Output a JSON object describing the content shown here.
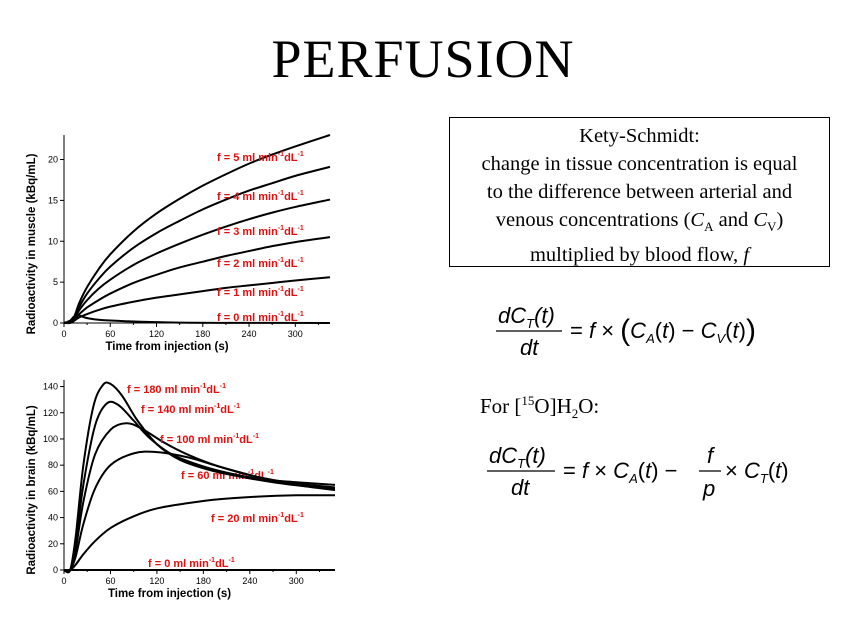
{
  "title": "PERFUSION",
  "kety_box": {
    "lines": [
      "Kety-Schmidt:",
      "change in tissue concentration is equal",
      "to the difference between arterial and"
    ],
    "line4_pre": "venous concentrations (",
    "ca": "C",
    "ca_sub": "A",
    "and_word": " and ",
    "cv": "C",
    "cv_sub": "V",
    "line4_post": ")",
    "line5_pre": "multiplied by blood flow, ",
    "line5_f": "f"
  },
  "for_label": {
    "pre": "For [",
    "sup": "15",
    "mid": "O]H",
    "sub": "2",
    "post": "O:"
  },
  "equation1": {
    "numerator": "dC",
    "numerator_sub": "T",
    "numerator_arg": "(t)",
    "denominator": "dt",
    "rhs": "= f × (C_A(t) − C_V(t))"
  },
  "equation2": {
    "numerator": "dC",
    "numerator_sub": "T",
    "numerator_arg": "(t)",
    "denominator": "dt",
    "rhs": "= f × C_A(t) − f/p × C_T(t)",
    "frac_num": "f",
    "frac_den": "p"
  },
  "chart_data": [
    {
      "type": "line",
      "xlabel": "Time from injection (s)",
      "ylabel": "Radioactivity in muscle (kBq/mL)",
      "xlim": [
        0,
        345
      ],
      "ylim": [
        0,
        23
      ],
      "xticks": [
        0,
        60,
        120,
        180,
        240,
        300
      ],
      "yticks": [
        0,
        5,
        10,
        15,
        20
      ],
      "grid": false,
      "series": [
        {
          "name": "f = 0 ml min-1dL-1",
          "label_main": "f = 0 ml min",
          "label_sup1": "-1",
          "label_mid": "dL",
          "label_sup2": "-1",
          "x": [
            0,
            8,
            12,
            16,
            20,
            30,
            40,
            60,
            100,
            150,
            200,
            345
          ],
          "y": [
            0,
            0.3,
            0.7,
            1.0,
            0.9,
            0.6,
            0.45,
            0.3,
            0.15,
            0.05,
            0.02,
            0
          ]
        },
        {
          "name": "f = 1 ml min-1dL-1",
          "label_main": "f = 1 ml min",
          "label_sup1": "-1",
          "label_mid": "dL",
          "label_sup2": "-1",
          "x": [
            0,
            10,
            15,
            20,
            30,
            45,
            60,
            90,
            120,
            150,
            180,
            210,
            240,
            270,
            300,
            345
          ],
          "y": [
            0,
            0.1,
            0.4,
            0.7,
            1.1,
            1.6,
            2.0,
            2.6,
            3.1,
            3.5,
            3.9,
            4.3,
            4.6,
            4.9,
            5.2,
            5.6
          ]
        },
        {
          "name": "f = 2 ml min-1dL-1",
          "label_main": "f = 2 ml min",
          "label_sup1": "-1",
          "label_mid": "dL",
          "label_sup2": "-1",
          "x": [
            0,
            10,
            15,
            20,
            30,
            45,
            60,
            90,
            120,
            150,
            180,
            210,
            240,
            270,
            300,
            345
          ],
          "y": [
            0,
            0.1,
            0.6,
            1.1,
            1.9,
            2.8,
            3.6,
            4.9,
            5.9,
            6.8,
            7.5,
            8.2,
            8.8,
            9.4,
            9.9,
            10.5
          ]
        },
        {
          "name": "f = 3 ml min-1dL-1",
          "label_main": "f = 3 ml min",
          "label_sup1": "-1",
          "label_mid": "dL",
          "label_sup2": "-1",
          "x": [
            0,
            10,
            15,
            20,
            30,
            45,
            60,
            90,
            120,
            150,
            180,
            210,
            240,
            270,
            300,
            345
          ],
          "y": [
            0,
            0.1,
            0.8,
            1.6,
            2.8,
            4.2,
            5.3,
            7.1,
            8.5,
            9.7,
            10.8,
            11.8,
            12.7,
            13.5,
            14.2,
            15.1
          ]
        },
        {
          "name": "f = 4 ml min-1dL-1",
          "label_main": "f = 4 ml min",
          "label_sup1": "-1",
          "label_mid": "dL",
          "label_sup2": "-1",
          "x": [
            0,
            10,
            15,
            20,
            30,
            45,
            60,
            90,
            120,
            150,
            180,
            210,
            240,
            270,
            300,
            345
          ],
          "y": [
            0,
            0.1,
            1.0,
            2.0,
            3.6,
            5.4,
            6.9,
            9.2,
            11.0,
            12.5,
            13.9,
            15.1,
            16.2,
            17.1,
            18.0,
            19.1
          ]
        },
        {
          "name": "f = 5 ml min-1dL-1",
          "label_main": "f = 5 ml min",
          "label_sup1": "-1",
          "label_mid": "dL",
          "label_sup2": "-1",
          "x": [
            0,
            10,
            15,
            20,
            30,
            45,
            60,
            90,
            120,
            150,
            180,
            210,
            240,
            270,
            300,
            345
          ],
          "y": [
            0,
            0.1,
            1.2,
            2.5,
            4.4,
            6.6,
            8.4,
            11.2,
            13.4,
            15.2,
            16.8,
            18.2,
            19.5,
            20.6,
            21.6,
            23.0
          ]
        }
      ]
    },
    {
      "type": "line",
      "xlabel": "Time from injection (s)",
      "ylabel": "Radioactivity in brain (kBq/mL)",
      "xlim": [
        0,
        350
      ],
      "ylim": [
        0,
        145
      ],
      "xticks": [
        0,
        60,
        120,
        180,
        240,
        300
      ],
      "yticks": [
        0,
        20,
        40,
        60,
        80,
        100,
        120,
        140
      ],
      "grid": false,
      "series": [
        {
          "name": "f = 0 ml min-1dL-1",
          "label_main": "f = 0 ml min",
          "label_sup1": "-1",
          "label_mid": "dL",
          "label_sup2": "-1",
          "x": [
            0,
            350
          ],
          "y": [
            0,
            0
          ]
        },
        {
          "name": "f = 20 ml min-1dL-1",
          "label_main": "f = 20 ml min",
          "label_sup1": "-1",
          "label_mid": "dL",
          "label_sup2": "-1",
          "x": [
            0,
            8,
            15,
            25,
            40,
            60,
            90,
            120,
            160,
            200,
            250,
            300,
            350
          ],
          "y": [
            0,
            0,
            4,
            12,
            22,
            32,
            41,
            47,
            51,
            54,
            56,
            57,
            57
          ]
        },
        {
          "name": "f = 60 ml min-1dL-1",
          "label_main": "f = 60 ml min",
          "label_sup1": "-1",
          "label_mid": "dL",
          "label_sup2": "-1",
          "x": [
            0,
            8,
            15,
            25,
            40,
            60,
            90,
            120,
            160,
            200,
            250,
            300,
            350
          ],
          "y": [
            0,
            0,
            10,
            35,
            62,
            80,
            89,
            90,
            86,
            79,
            71,
            65,
            61
          ]
        },
        {
          "name": "f = 100 ml min-1dL-1",
          "label_main": "f = 100 ml min",
          "label_sup1": "-1",
          "label_mid": "dL",
          "label_sup2": "-1",
          "x": [
            0,
            8,
            15,
            25,
            40,
            60,
            80,
            100,
            130,
            160,
            200,
            250,
            300,
            350
          ],
          "y": [
            0,
            0,
            15,
            52,
            88,
            107,
            112,
            108,
            97,
            88,
            79,
            71,
            66,
            63
          ]
        },
        {
          "name": "f = 140 ml min-1dL-1",
          "label_main": "f = 140 ml min",
          "label_sup1": "-1",
          "label_mid": "dL",
          "label_sup2": "-1",
          "x": [
            0,
            8,
            15,
            25,
            40,
            55,
            70,
            90,
            110,
            140,
            180,
            220,
            260,
            300,
            350
          ],
          "y": [
            0,
            0,
            20,
            65,
            110,
            127,
            126,
            114,
            101,
            88,
            79,
            73,
            69,
            67,
            65
          ]
        },
        {
          "name": "f = 180 ml min-1dL-1",
          "label_main": "f = 180 ml min",
          "label_sup1": "-1",
          "label_mid": "dL",
          "label_sup2": "-1",
          "x": [
            0,
            8,
            15,
            25,
            38,
            50,
            60,
            75,
            95,
            120,
            150,
            190,
            230,
            270,
            310,
            350
          ],
          "y": [
            0,
            0,
            25,
            80,
            125,
            141,
            142,
            133,
            114,
            96,
            84,
            76,
            71,
            67,
            64,
            62
          ]
        }
      ]
    }
  ]
}
